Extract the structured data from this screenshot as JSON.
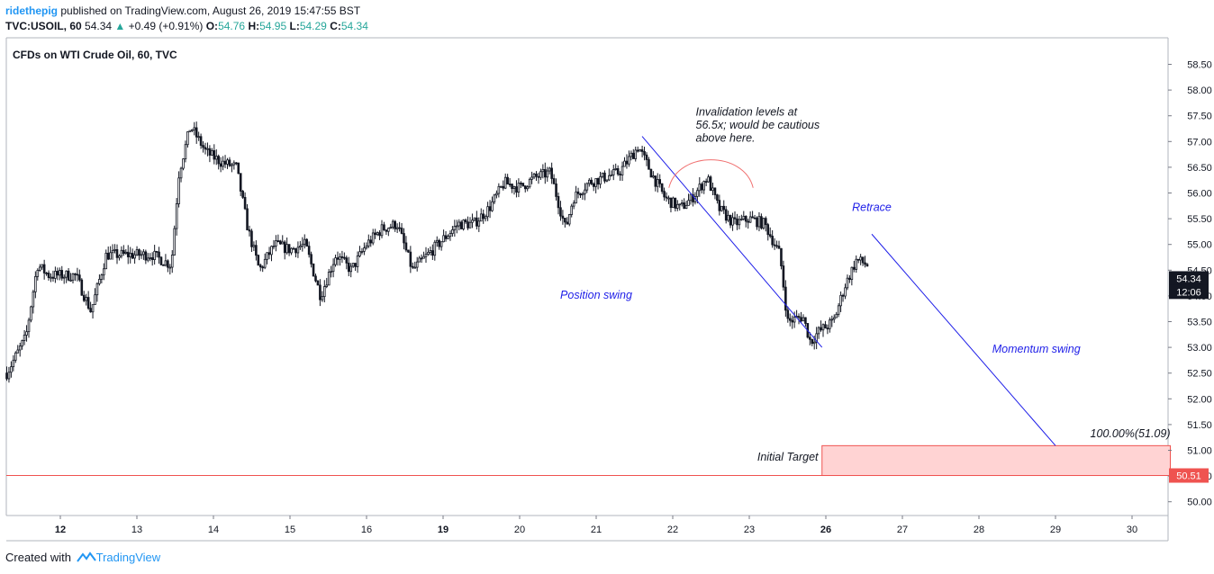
{
  "header": {
    "author": "ridethepig",
    "published": "published on TradingView.com, August 26, 2019 15:47:55 BST",
    "symbol": "TVC:USOIL, 60",
    "last": "54.34",
    "change": "+0.49 (+0.91%)",
    "o_label": "O:",
    "o": "54.76",
    "h_label": "H:",
    "h": "54.95",
    "l_label": "L:",
    "l": "54.29",
    "c_label": "C:",
    "c": "54.34"
  },
  "footer": {
    "created": "Created with",
    "brand": "TradingView"
  },
  "colors": {
    "up": "#26a69a",
    "candle": "#131722",
    "drawing": "#1e1ee8",
    "arc": "#f07070",
    "target_line": "#ef5350",
    "target_fill": "#ffd3d3",
    "price_tag": "#ef5350"
  },
  "chart_data": {
    "type": "candlestick",
    "title": "CFDs on WTI Crude Oil, 60, TVC",
    "ylim": [
      49.5,
      58.9
    ],
    "y_ticks": [
      "58.50",
      "58.00",
      "57.50",
      "57.00",
      "56.50",
      "56.00",
      "55.50",
      "55.00",
      "54.50",
      "54.00",
      "53.50",
      "53.00",
      "52.50",
      "52.00",
      "51.50",
      "51.00",
      "50.50",
      "50.00"
    ],
    "x_ticks": [
      {
        "label": "12",
        "day": 12,
        "bold": true
      },
      {
        "label": "13",
        "day": 13,
        "bold": false
      },
      {
        "label": "14",
        "day": 14,
        "bold": false
      },
      {
        "label": "15",
        "day": 15,
        "bold": false
      },
      {
        "label": "16",
        "day": 16,
        "bold": false
      },
      {
        "label": "19",
        "day": 17,
        "bold": true
      },
      {
        "label": "20",
        "day": 18,
        "bold": false
      },
      {
        "label": "21",
        "day": 19,
        "bold": false
      },
      {
        "label": "22",
        "day": 20,
        "bold": false
      },
      {
        "label": "23",
        "day": 21,
        "bold": false
      },
      {
        "label": "26",
        "day": 22,
        "bold": true
      },
      {
        "label": "27",
        "day": 23,
        "bold": false
      },
      {
        "label": "28",
        "day": 24,
        "bold": false
      },
      {
        "label": "29",
        "day": 25,
        "bold": false
      },
      {
        "label": "30",
        "day": 26,
        "bold": false
      }
    ],
    "path": [
      [
        11.3,
        52.5
      ],
      [
        11.55,
        53.2
      ],
      [
        11.7,
        54.6
      ],
      [
        11.85,
        54.4
      ],
      [
        12.0,
        54.4
      ],
      [
        12.2,
        54.4
      ],
      [
        12.4,
        53.7
      ],
      [
        12.6,
        54.8
      ],
      [
        12.8,
        54.8
      ],
      [
        13.0,
        54.8
      ],
      [
        13.2,
        54.8
      ],
      [
        13.45,
        54.6
      ],
      [
        13.55,
        56.4
      ],
      [
        13.7,
        57.3
      ],
      [
        13.9,
        56.8
      ],
      [
        14.1,
        56.6
      ],
      [
        14.3,
        56.5
      ],
      [
        14.45,
        55.3
      ],
      [
        14.6,
        54.5
      ],
      [
        14.8,
        55.0
      ],
      [
        15.0,
        54.9
      ],
      [
        15.2,
        55.0
      ],
      [
        15.4,
        54.0
      ],
      [
        15.6,
        54.8
      ],
      [
        15.8,
        54.5
      ],
      [
        16.0,
        55.0
      ],
      [
        16.2,
        55.3
      ],
      [
        16.4,
        55.4
      ],
      [
        16.6,
        54.5
      ],
      [
        16.8,
        54.8
      ],
      [
        17.0,
        55.1
      ],
      [
        17.2,
        55.4
      ],
      [
        17.4,
        55.4
      ],
      [
        17.6,
        55.7
      ],
      [
        17.8,
        56.2
      ],
      [
        18.0,
        56.1
      ],
      [
        18.2,
        56.3
      ],
      [
        18.4,
        56.4
      ],
      [
        18.6,
        55.3
      ],
      [
        18.7,
        55.9
      ],
      [
        18.9,
        56.2
      ],
      [
        19.1,
        56.3
      ],
      [
        19.3,
        56.4
      ],
      [
        19.55,
        56.9
      ],
      [
        19.75,
        56.3
      ],
      [
        19.9,
        55.9
      ],
      [
        20.1,
        55.7
      ],
      [
        20.25,
        55.9
      ],
      [
        20.45,
        56.3
      ],
      [
        20.6,
        55.7
      ],
      [
        20.8,
        55.4
      ],
      [
        21.0,
        55.5
      ],
      [
        21.2,
        55.4
      ],
      [
        21.4,
        54.8
      ],
      [
        21.5,
        53.5
      ],
      [
        21.7,
        53.6
      ],
      [
        21.8,
        53.1
      ],
      [
        21.9,
        53.3
      ],
      [
        22.1,
        53.5
      ],
      [
        22.25,
        54.2
      ],
      [
        22.4,
        54.7
      ],
      [
        22.55,
        54.6
      ]
    ],
    "ohlc_last": {
      "o": 54.76,
      "h": 54.95,
      "l": 54.29,
      "c": 54.34
    },
    "drawings": {
      "position_line": {
        "from": [
          19.6,
          57.1
        ],
        "to": [
          21.95,
          53.0
        ]
      },
      "momentum_line": {
        "from": [
          22.6,
          55.2
        ],
        "to": [
          25.0,
          51.09
        ]
      },
      "invalidation_arc": {
        "center_day": 20.5,
        "base": 56.1,
        "peak": 56.65,
        "half_width": 0.55
      },
      "target_box": {
        "x1": 21.95,
        "x2": 26.5,
        "y1": 51.09,
        "y2": 50.51
      }
    },
    "annotations": [
      {
        "text": "Invalidation levels at",
        "day": 20.3,
        "y": 57.5,
        "align": "start"
      },
      {
        "text": "56.5x; would be cautious",
        "day": 20.3,
        "y": 57.25,
        "align": "start"
      },
      {
        "text": "above here.",
        "day": 20.3,
        "y": 57.0,
        "align": "start"
      },
      {
        "text": "Position swing",
        "day": 19.0,
        "y": 53.95,
        "align": "middle",
        "color": "#1e1ee8"
      },
      {
        "text": "Retrace",
        "day": 22.6,
        "y": 55.65,
        "align": "middle",
        "color": "#1e1ee8"
      },
      {
        "text": "Momentum swing",
        "day": 24.75,
        "y": 52.9,
        "align": "middle",
        "color": "#1e1ee8"
      },
      {
        "text": "Initial Target",
        "day": 21.9,
        "y": 50.8,
        "align": "end"
      },
      {
        "text": "100.00%(51.09)",
        "day": 26.5,
        "y": 51.25,
        "align": "end"
      }
    ],
    "price_tags": [
      {
        "text": "54.34",
        "y": 54.34,
        "style": "dark"
      },
      {
        "text": "12:06",
        "y": 54.08,
        "style": "dark"
      },
      {
        "text": "50.51",
        "y": 50.51,
        "style": "red"
      }
    ]
  }
}
